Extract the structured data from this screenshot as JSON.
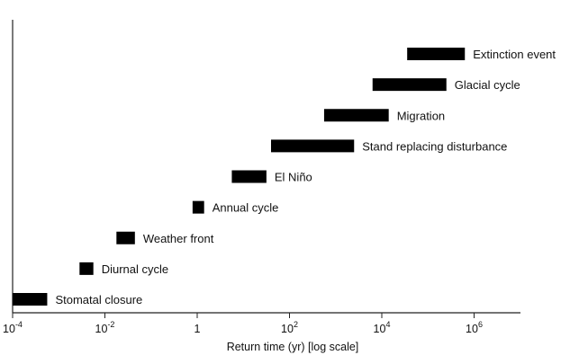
{
  "chart_data": {
    "type": "bar",
    "orientation": "horizontal-range",
    "x_scale": "log10",
    "xlim": [
      -4,
      7
    ],
    "xlabel": "Return time (yr) [log scale]",
    "x_ticks": [
      {
        "log10": -4,
        "base": "10",
        "exp": "-4"
      },
      {
        "log10": -2,
        "base": "10",
        "exp": "-2"
      },
      {
        "log10": 0,
        "base": "1",
        "exp": ""
      },
      {
        "log10": 2,
        "base": "10",
        "exp": "2"
      },
      {
        "log10": 4,
        "base": "10",
        "exp": "4"
      },
      {
        "log10": 6,
        "base": "10",
        "exp": "6"
      }
    ],
    "grid": false,
    "legend": "none",
    "bar_color": "#000000",
    "series": [
      {
        "name": "Stomatal closure",
        "x_start_log10": -4.0,
        "x_end_log10": -3.25
      },
      {
        "name": "Diurnal cycle",
        "x_start_log10": -2.55,
        "x_end_log10": -2.25
      },
      {
        "name": "Weather front",
        "x_start_log10": -1.75,
        "x_end_log10": -1.35
      },
      {
        "name": "Annual cycle",
        "x_start_log10": -0.1,
        "x_end_log10": 0.15
      },
      {
        "name": "El Niño",
        "x_start_log10": 0.75,
        "x_end_log10": 1.5
      },
      {
        "name": "Stand replacing disturbance",
        "x_start_log10": 1.6,
        "x_end_log10": 3.4
      },
      {
        "name": "Migration",
        "x_start_log10": 2.75,
        "x_end_log10": 4.15
      },
      {
        "name": "Glacial cycle",
        "x_start_log10": 3.8,
        "x_end_log10": 5.4
      },
      {
        "name": "Extinction event",
        "x_start_log10": 4.55,
        "x_end_log10": 5.8
      }
    ]
  }
}
